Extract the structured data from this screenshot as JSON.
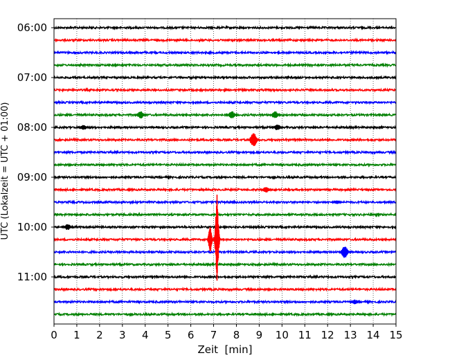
{
  "chart_data": {
    "type": "line",
    "title": "",
    "xlabel": "Zeit  [min]",
    "ylabel": "UTC (Lokalzeit = UTC + 01:00)",
    "xlim": [
      0,
      15
    ],
    "x_ticks": [
      0,
      1,
      2,
      3,
      4,
      5,
      6,
      7,
      8,
      9,
      10,
      11,
      12,
      13,
      14,
      15
    ],
    "y_tick_labels": [
      "06:00",
      "07:00",
      "08:00",
      "09:00",
      "10:00",
      "11:00"
    ],
    "grid": "vertical dotted",
    "line_colors": [
      "#000000",
      "#ff0000",
      "#0000ff",
      "#008000"
    ],
    "series": [
      {
        "time": "06:00",
        "color": "black"
      },
      {
        "time": "06:15",
        "color": "red"
      },
      {
        "time": "06:30",
        "color": "blue"
      },
      {
        "time": "06:45",
        "color": "green"
      },
      {
        "time": "07:00",
        "color": "black"
      },
      {
        "time": "07:15",
        "color": "red"
      },
      {
        "time": "07:30",
        "color": "blue"
      },
      {
        "time": "07:45",
        "color": "green",
        "events": [
          {
            "x": 3.8,
            "amp": 0.3
          },
          {
            "x": 7.8,
            "amp": 0.3
          },
          {
            "x": 9.7,
            "amp": 0.3
          }
        ]
      },
      {
        "time": "08:00",
        "color": "black",
        "events": [
          {
            "x": 1.3,
            "amp": 0.2
          },
          {
            "x": 9.8,
            "amp": 0.25
          }
        ]
      },
      {
        "time": "08:15",
        "color": "red",
        "events": [
          {
            "x": 8.75,
            "amp": 0.6
          }
        ]
      },
      {
        "time": "08:30",
        "color": "blue"
      },
      {
        "time": "08:45",
        "color": "green"
      },
      {
        "time": "09:00",
        "color": "black"
      },
      {
        "time": "09:15",
        "color": "red",
        "events": [
          {
            "x": 9.3,
            "amp": 0.25
          }
        ]
      },
      {
        "time": "09:30",
        "color": "blue",
        "events": [
          {
            "x": 12.4,
            "amp": 0.15
          }
        ]
      },
      {
        "time": "09:45",
        "color": "green"
      },
      {
        "time": "10:00",
        "color": "black",
        "events": [
          {
            "x": 0.6,
            "amp": 0.25
          }
        ]
      },
      {
        "time": "10:15",
        "color": "red",
        "events": [
          {
            "x": 6.85,
            "amp": 1.0
          },
          {
            "x": 7.15,
            "amp": 3.0
          }
        ]
      },
      {
        "time": "10:30",
        "color": "blue",
        "events": [
          {
            "x": 12.75,
            "amp": 0.5
          }
        ]
      },
      {
        "time": "10:45",
        "color": "green"
      },
      {
        "time": "11:00",
        "color": "black"
      },
      {
        "time": "11:15",
        "color": "red"
      },
      {
        "time": "11:30",
        "color": "blue",
        "events": [
          {
            "x": 13.2,
            "amp": 0.2
          }
        ]
      },
      {
        "time": "11:45",
        "color": "green"
      }
    ]
  }
}
